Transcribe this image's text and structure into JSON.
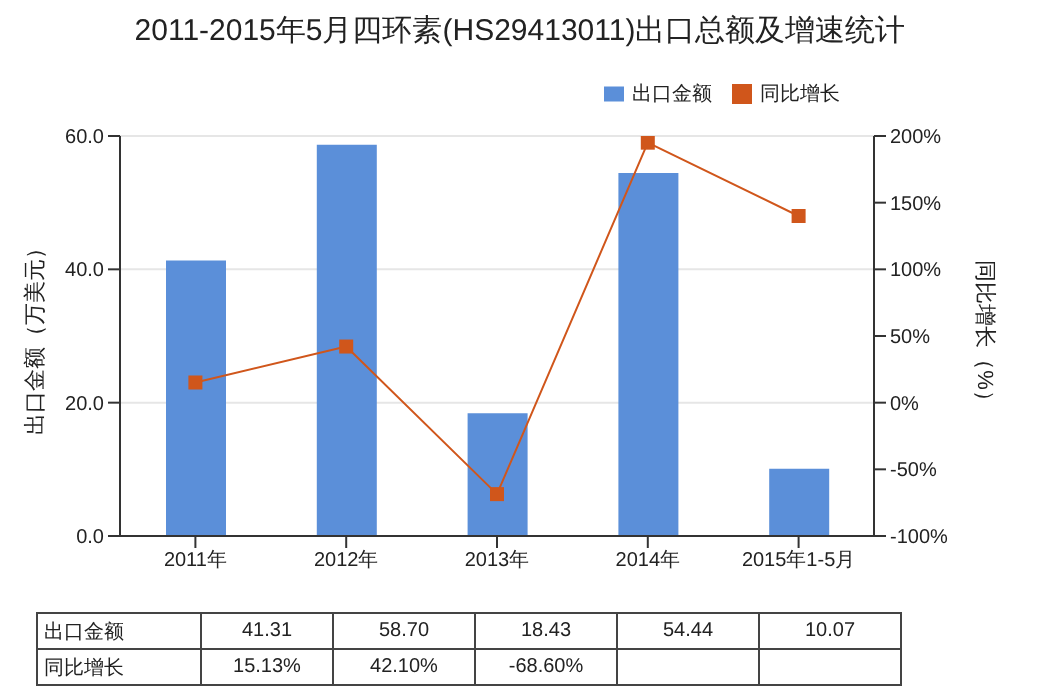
{
  "chart_data": {
    "type": "bar",
    "title": "2011-2015年5月四环素(HS29413011)出口总额及增速统计",
    "ylabel": "出口金额（万美元）",
    "y2label": "同比增长（%）",
    "categories": [
      "2011年",
      "2012年",
      "2013年",
      "2014年",
      "2015年1-5月"
    ],
    "series": [
      {
        "name": "出口金额",
        "color": "#5b8fd9",
        "values": [
          41.31,
          58.7,
          18.43,
          54.44,
          10.07
        ],
        "value_labels": [
          "41.31",
          "58.70",
          "18.43",
          "54.44",
          "10.07"
        ]
      },
      {
        "name": "同比增长",
        "type": "line",
        "axis": "y2",
        "color": "#d0561b",
        "values": [
          15.13,
          42.1,
          -68.6,
          195,
          140
        ],
        "value_labels": [
          "15.13%",
          "42.10%",
          "-68.60%",
          null,
          null
        ]
      }
    ],
    "ylim": [
      0,
      60
    ],
    "yticks": [
      {
        "value": 0,
        "label": "0.0"
      },
      {
        "value": 20,
        "label": "20.0"
      },
      {
        "value": 40,
        "label": "40.0"
      },
      {
        "value": 60,
        "label": "60.0"
      }
    ],
    "y2lim": [
      -100,
      200
    ],
    "y2ticks": [
      {
        "value": -100,
        "label": "-100%"
      },
      {
        "value": -50,
        "label": "-50%"
      },
      {
        "value": 0,
        "label": "0%"
      },
      {
        "value": 50,
        "label": "50%"
      },
      {
        "value": 100,
        "label": "100%"
      },
      {
        "value": 150,
        "label": "150%"
      },
      {
        "value": 200,
        "label": "200%"
      }
    ],
    "grid": "y",
    "legend": "top right",
    "marker": "square",
    "line_style": "solid"
  }
}
